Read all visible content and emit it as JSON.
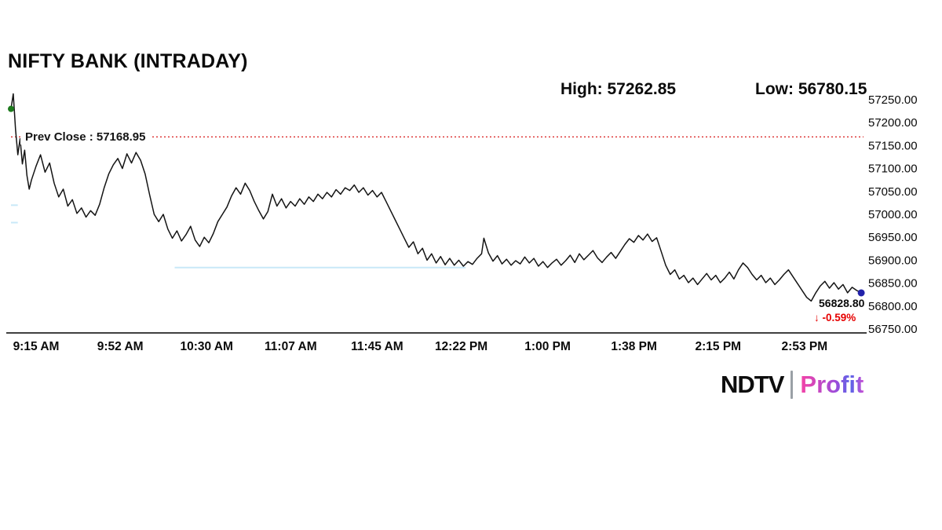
{
  "title": "NIFTY BANK (INTRADAY)",
  "stats": {
    "high_label": "High: 57262.85",
    "low_label": "Low: 56780.15"
  },
  "prev_close": {
    "label": "Prev Close : 57168.95",
    "value": 57168.95
  },
  "last": {
    "price_label": "56828.80",
    "change_label": "↓ -0.59%",
    "price": 56828.8,
    "change_pct": -0.59
  },
  "branding": {
    "ndtv": "NDTV",
    "separator": "",
    "profit": "Profit"
  },
  "colors": {
    "line": "#141414",
    "prev_close_line": "#d40000",
    "change_text": "#e60000",
    "start_dot": "#1d7a1d",
    "end_dot": "#2222aa",
    "axis": "#000000",
    "faint_level_line": "#c9e8f8"
  },
  "chart_data": {
    "type": "line",
    "title": "NIFTY BANK (INTRADAY)",
    "x_unit": "minutes since 09:15 AM",
    "x_tick_labels": [
      "9:15 AM",
      "9:52 AM",
      "10:30 AM",
      "11:07 AM",
      "11:45 AM",
      "12:22 PM",
      "1:00 PM",
      "1:38 PM",
      "2:15 PM",
      "2:53 PM"
    ],
    "x_tick_minutes": [
      0,
      37,
      75,
      112,
      150,
      187,
      225,
      263,
      300,
      338
    ],
    "x_range_minutes": [
      0,
      375
    ],
    "y_tick_labels": [
      "57250.00",
      "57200.00",
      "57150.00",
      "57100.00",
      "57050.00",
      "57000.00",
      "56950.00",
      "56900.00",
      "56850.00",
      "56800.00",
      "56750.00"
    ],
    "y_ticks": [
      57250,
      57200,
      57150,
      57100,
      57050,
      57000,
      56950,
      56900,
      56850,
      56800,
      56750
    ],
    "ylim": [
      56750,
      57250
    ],
    "grid": false,
    "legend": false,
    "high": 57262.85,
    "low": 56780.15,
    "prev_close": 57168.95,
    "last": 56828.8,
    "change_pct": -0.59,
    "annotations": [
      {
        "type": "level-line",
        "price": 56884,
        "from_min": 72,
        "to_min": 200
      },
      {
        "type": "level-line",
        "price": 57020,
        "from_min": 0,
        "to_min": 3
      },
      {
        "type": "level-line",
        "price": 56982,
        "from_min": 0,
        "to_min": 3
      }
    ],
    "series": [
      {
        "name": "NIFTY BANK",
        "points": [
          [
            0,
            57230
          ],
          [
            1,
            57262.85
          ],
          [
            2,
            57185
          ],
          [
            3,
            57130
          ],
          [
            4,
            57165
          ],
          [
            5,
            57110
          ],
          [
            6,
            57140
          ],
          [
            7,
            57085
          ],
          [
            8,
            57055
          ],
          [
            9,
            57075
          ],
          [
            11,
            57105
          ],
          [
            13,
            57130
          ],
          [
            15,
            57092
          ],
          [
            17,
            57112
          ],
          [
            19,
            57068
          ],
          [
            21,
            57038
          ],
          [
            23,
            57055
          ],
          [
            25,
            57018
          ],
          [
            27,
            57032
          ],
          [
            29,
            57002
          ],
          [
            31,
            57014
          ],
          [
            33,
            56994
          ],
          [
            35,
            57008
          ],
          [
            37,
            56998
          ],
          [
            39,
            57022
          ],
          [
            41,
            57058
          ],
          [
            43,
            57088
          ],
          [
            45,
            57108
          ],
          [
            47,
            57122
          ],
          [
            49,
            57100
          ],
          [
            51,
            57132
          ],
          [
            53,
            57112
          ],
          [
            55,
            57135
          ],
          [
            57,
            57118
          ],
          [
            59,
            57088
          ],
          [
            61,
            57042
          ],
          [
            63,
            57000
          ],
          [
            65,
            56984
          ],
          [
            67,
            57000
          ],
          [
            69,
            56968
          ],
          [
            71,
            56948
          ],
          [
            73,
            56964
          ],
          [
            75,
            56942
          ],
          [
            77,
            56956
          ],
          [
            79,
            56974
          ],
          [
            81,
            56944
          ],
          [
            83,
            56930
          ],
          [
            85,
            56950
          ],
          [
            87,
            56938
          ],
          [
            89,
            56958
          ],
          [
            91,
            56984
          ],
          [
            93,
            57000
          ],
          [
            95,
            57016
          ],
          [
            97,
            57040
          ],
          [
            99,
            57058
          ],
          [
            101,
            57044
          ],
          [
            103,
            57068
          ],
          [
            105,
            57052
          ],
          [
            107,
            57028
          ],
          [
            109,
            57008
          ],
          [
            111,
            56990
          ],
          [
            113,
            57006
          ],
          [
            115,
            57044
          ],
          [
            117,
            57018
          ],
          [
            119,
            57034
          ],
          [
            121,
            57014
          ],
          [
            123,
            57028
          ],
          [
            125,
            57018
          ],
          [
            127,
            57034
          ],
          [
            129,
            57022
          ],
          [
            131,
            57038
          ],
          [
            133,
            57028
          ],
          [
            135,
            57044
          ],
          [
            137,
            57034
          ],
          [
            139,
            57048
          ],
          [
            141,
            57038
          ],
          [
            143,
            57054
          ],
          [
            145,
            57044
          ],
          [
            147,
            57058
          ],
          [
            149,
            57052
          ],
          [
            151,
            57064
          ],
          [
            153,
            57048
          ],
          [
            155,
            57058
          ],
          [
            157,
            57042
          ],
          [
            159,
            57052
          ],
          [
            161,
            57038
          ],
          [
            163,
            57048
          ],
          [
            165,
            57028
          ],
          [
            167,
            57008
          ],
          [
            169,
            56988
          ],
          [
            171,
            56968
          ],
          [
            173,
            56948
          ],
          [
            175,
            56928
          ],
          [
            177,
            56940
          ],
          [
            179,
            56914
          ],
          [
            181,
            56926
          ],
          [
            183,
            56900
          ],
          [
            185,
            56914
          ],
          [
            187,
            56894
          ],
          [
            189,
            56908
          ],
          [
            191,
            56890
          ],
          [
            193,
            56904
          ],
          [
            195,
            56889
          ],
          [
            197,
            56900
          ],
          [
            199,
            56887
          ],
          [
            201,
            56897
          ],
          [
            203,
            56891
          ],
          [
            205,
            56904
          ],
          [
            207,
            56914
          ],
          [
            208,
            56948
          ],
          [
            210,
            56916
          ],
          [
            212,
            56898
          ],
          [
            214,
            56910
          ],
          [
            216,
            56892
          ],
          [
            218,
            56902
          ],
          [
            220,
            56889
          ],
          [
            222,
            56899
          ],
          [
            224,
            56892
          ],
          [
            226,
            56907
          ],
          [
            228,
            56894
          ],
          [
            230,
            56904
          ],
          [
            232,
            56887
          ],
          [
            234,
            56897
          ],
          [
            236,
            56884
          ],
          [
            238,
            56894
          ],
          [
            240,
            56902
          ],
          [
            242,
            56889
          ],
          [
            244,
            56899
          ],
          [
            246,
            56911
          ],
          [
            248,
            56895
          ],
          [
            250,
            56914
          ],
          [
            252,
            56901
          ],
          [
            254,
            56911
          ],
          [
            256,
            56921
          ],
          [
            258,
            56905
          ],
          [
            260,
            56895
          ],
          [
            262,
            56907
          ],
          [
            264,
            56917
          ],
          [
            266,
            56904
          ],
          [
            268,
            56919
          ],
          [
            270,
            56934
          ],
          [
            272,
            56947
          ],
          [
            274,
            56939
          ],
          [
            276,
            56954
          ],
          [
            278,
            56944
          ],
          [
            280,
            56957
          ],
          [
            282,
            56941
          ],
          [
            284,
            56949
          ],
          [
            286,
            56919
          ],
          [
            288,
            56889
          ],
          [
            290,
            56869
          ],
          [
            292,
            56879
          ],
          [
            294,
            56859
          ],
          [
            296,
            56867
          ],
          [
            298,
            56851
          ],
          [
            300,
            56861
          ],
          [
            302,
            56847
          ],
          [
            304,
            56859
          ],
          [
            306,
            56871
          ],
          [
            308,
            56857
          ],
          [
            310,
            56867
          ],
          [
            312,
            56851
          ],
          [
            314,
            56861
          ],
          [
            316,
            56874
          ],
          [
            318,
            56859
          ],
          [
            320,
            56879
          ],
          [
            322,
            56894
          ],
          [
            324,
            56884
          ],
          [
            326,
            56869
          ],
          [
            328,
            56857
          ],
          [
            330,
            56867
          ],
          [
            332,
            56851
          ],
          [
            334,
            56861
          ],
          [
            336,
            56847
          ],
          [
            338,
            56857
          ],
          [
            340,
            56869
          ],
          [
            342,
            56879
          ],
          [
            344,
            56864
          ],
          [
            346,
            56849
          ],
          [
            348,
            56834
          ],
          [
            350,
            56819
          ],
          [
            352,
            56811
          ],
          [
            354,
            56829
          ],
          [
            356,
            56844
          ],
          [
            358,
            56854
          ],
          [
            360,
            56839
          ],
          [
            362,
            56851
          ],
          [
            364,
            56837
          ],
          [
            366,
            56847
          ],
          [
            368,
            56829
          ],
          [
            370,
            56841
          ],
          [
            372,
            56834
          ],
          [
            374,
            56828.8
          ]
        ]
      }
    ]
  }
}
